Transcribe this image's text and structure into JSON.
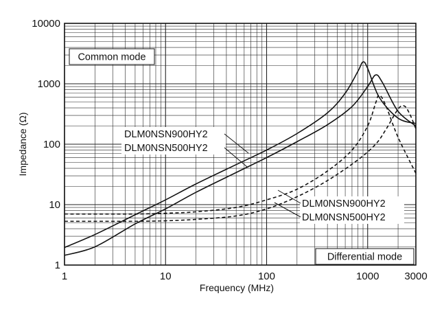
{
  "chart_data": {
    "type": "line",
    "title": "",
    "xlabel": "Frequency (MHz)",
    "ylabel": "Impedance (Ω)",
    "x_scale": "log",
    "y_scale": "log",
    "xlim": [
      1,
      3000
    ],
    "ylim": [
      1,
      10000
    ],
    "x_ticks": [
      {
        "value": 1,
        "label": "1"
      },
      {
        "value": 10,
        "label": "10"
      },
      {
        "value": 100,
        "label": "100"
      },
      {
        "value": 1000,
        "label": "1000"
      },
      {
        "value": 3000,
        "label": "3000"
      }
    ],
    "y_ticks": [
      {
        "value": 1,
        "label": "1"
      },
      {
        "value": 10,
        "label": "10"
      },
      {
        "value": 100,
        "label": "100"
      },
      {
        "value": 1000,
        "label": "1000"
      },
      {
        "value": 10000,
        "label": "10000"
      }
    ],
    "grid": true,
    "mode_labels": {
      "common": "Common mode",
      "differential": "Differential mode"
    },
    "series": [
      {
        "group": "Common mode",
        "style": "solid",
        "points": [
          [
            1,
            1.95
          ],
          [
            2,
            3.2
          ],
          [
            5,
            6.8
          ],
          [
            10,
            12
          ],
          [
            20,
            22
          ],
          [
            50,
            46
          ],
          [
            100,
            80
          ],
          [
            200,
            150
          ],
          [
            400,
            330
          ],
          [
            600,
            700
          ],
          [
            800,
            1600
          ],
          [
            900,
            2300
          ],
          [
            1000,
            1800
          ],
          [
            1300,
            600
          ],
          [
            2000,
            270
          ],
          [
            3000,
            220
          ]
        ]
      },
      {
        "group": "Common mode",
        "style": "solid",
        "points": [
          [
            1,
            1.45
          ],
          [
            2,
            2.0
          ],
          [
            5,
            4.8
          ],
          [
            10,
            8.5
          ],
          [
            20,
            16
          ],
          [
            50,
            34
          ],
          [
            100,
            60
          ],
          [
            200,
            110
          ],
          [
            400,
            210
          ],
          [
            700,
            420
          ],
          [
            1000,
            900
          ],
          [
            1200,
            1400
          ],
          [
            1400,
            1050
          ],
          [
            2000,
            350
          ],
          [
            3000,
            200
          ]
        ]
      },
      {
        "group": "Differential mode",
        "style": "dashed",
        "points": [
          [
            1,
            7.0
          ],
          [
            5,
            7.0
          ],
          [
            10,
            7.2
          ],
          [
            20,
            7.6
          ],
          [
            50,
            9.0
          ],
          [
            100,
            12
          ],
          [
            200,
            18
          ],
          [
            400,
            36
          ],
          [
            700,
            80
          ],
          [
            1000,
            200
          ],
          [
            1200,
            480
          ],
          [
            1300,
            650
          ],
          [
            1500,
            450
          ],
          [
            2000,
            130
          ],
          [
            3000,
            33
          ]
        ]
      },
      {
        "group": "Differential mode",
        "style": "dashed",
        "points": [
          [
            1,
            5.3
          ],
          [
            5,
            5.3
          ],
          [
            10,
            5.4
          ],
          [
            20,
            5.7
          ],
          [
            50,
            6.5
          ],
          [
            100,
            8.5
          ],
          [
            200,
            13.5
          ],
          [
            400,
            25
          ],
          [
            800,
            55
          ],
          [
            1200,
            100
          ],
          [
            1500,
            170
          ],
          [
            2000,
            380
          ],
          [
            2300,
            430
          ],
          [
            2600,
            320
          ],
          [
            3000,
            180
          ]
        ]
      }
    ],
    "annotations": [
      {
        "text": "DLM0NSN900HY2",
        "group": "Common mode"
      },
      {
        "text": "DLM0NSN500HY2",
        "group": "Common mode"
      },
      {
        "text": "DLM0NSN900HY2",
        "group": "Differential mode"
      },
      {
        "text": "DLM0NSN500HY2",
        "group": "Differential mode"
      }
    ]
  }
}
